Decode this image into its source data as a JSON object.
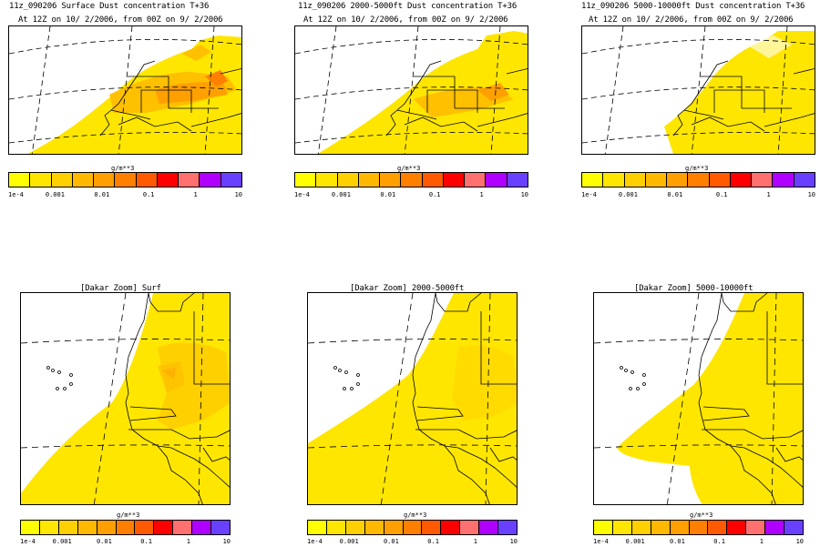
{
  "colorbar": {
    "unit": "g/m**3",
    "tick_labels": [
      "1e-4",
      "0.001",
      "0.01",
      "0.1",
      "1",
      "10"
    ],
    "colors": [
      "#ffff00",
      "#ffe600",
      "#ffd000",
      "#ffb900",
      "#ffa000",
      "#ff8000",
      "#ff5a00",
      "#ff0000",
      "#ff7070",
      "#b000ff",
      "#6a40ff"
    ]
  },
  "panels": [
    {
      "line1": "11z_090206 Surface Dust concentration T+36",
      "line2": "At 12Z on 10/ 2/2006, from 00Z on 9/ 2/2006",
      "level": "surface"
    },
    {
      "line1": "11z_090206 2000-5000ft Dust concentration T+36",
      "line2": "At 12Z on 10/ 2/2006, from 00Z on 9/ 2/2006",
      "level": "2000-5000ft"
    },
    {
      "line1": "11z_090206 5000-10000ft Dust concentration T+36",
      "line2": "At 12Z on 10/ 2/2006, from 00Z on 9/ 2/2006",
      "level": "5000-10000ft"
    },
    {
      "line1": "[Dakar Zoom] Surf",
      "line2": "",
      "level": "surface"
    },
    {
      "line1": "[Dakar Zoom] 2000-5000ft",
      "line2": "",
      "level": "2000-5000ft"
    },
    {
      "line1": "[Dakar Zoom] 5000-10000ft",
      "line2": "",
      "level": "5000-10000ft"
    }
  ]
}
